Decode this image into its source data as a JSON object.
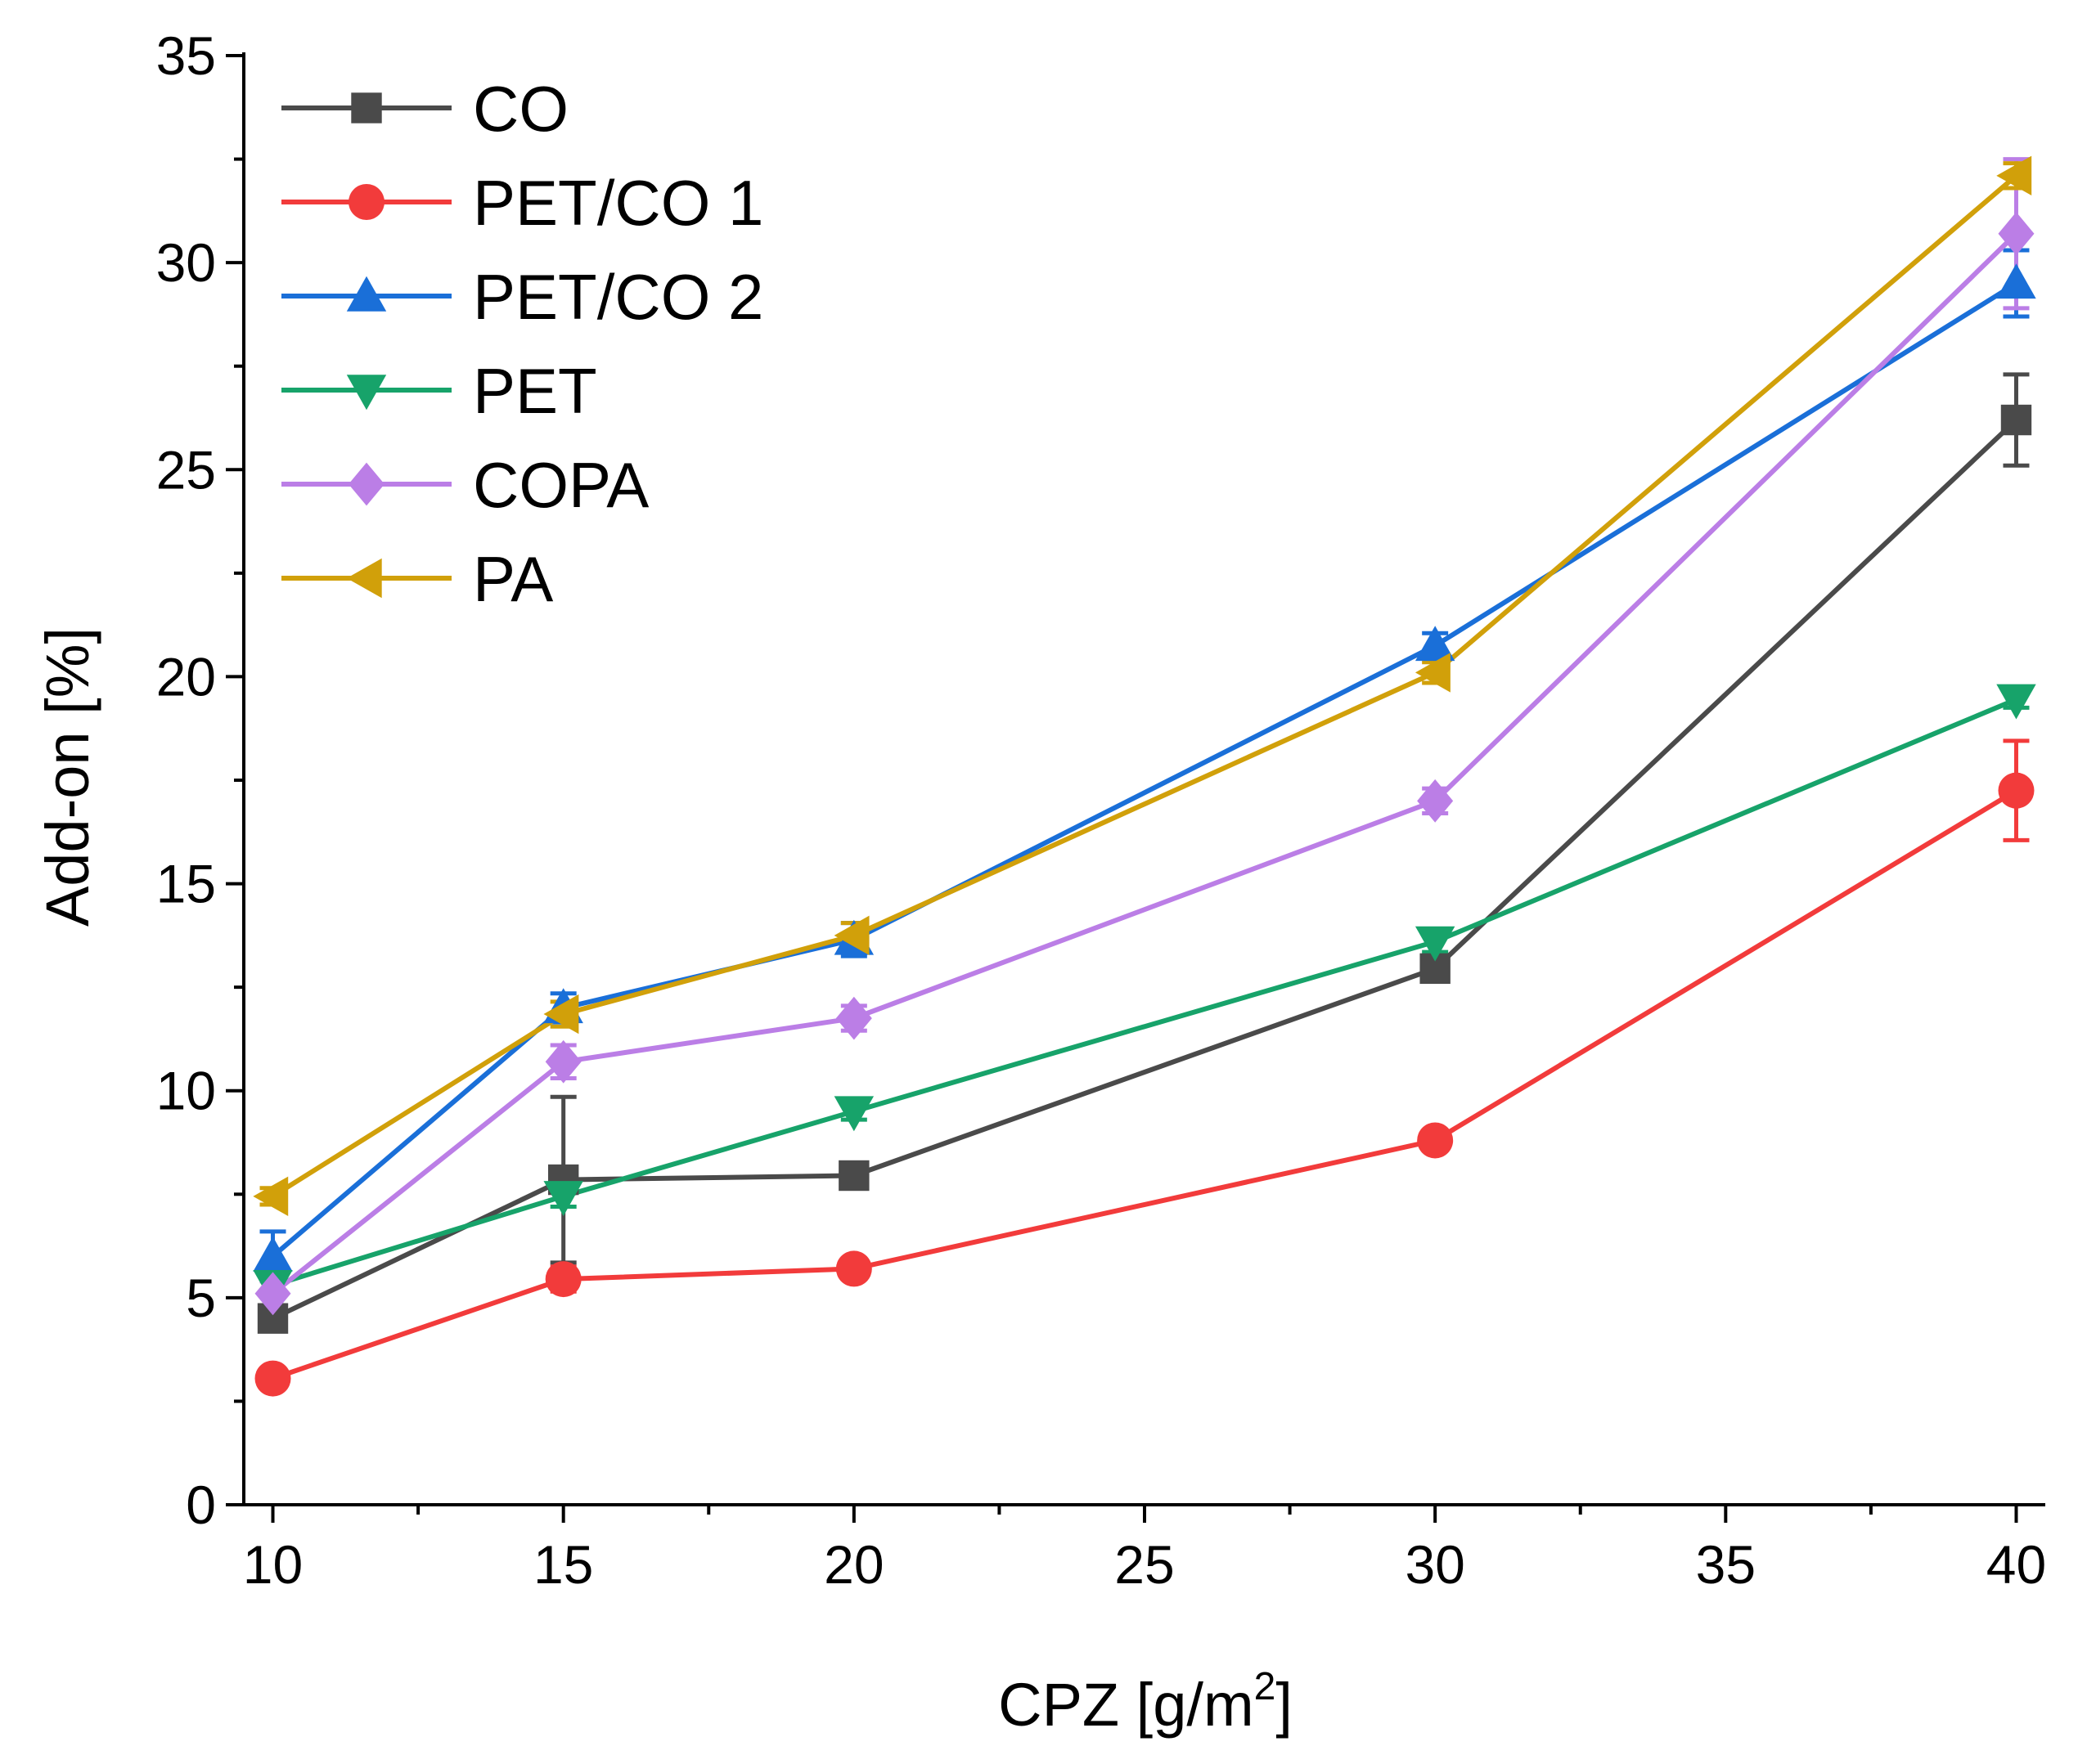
{
  "chart_data": {
    "type": "line",
    "title": "",
    "xlabel_main": "CPZ [g/m",
    "xlabel_sup": "2",
    "xlabel_end": "]",
    "ylabel": "Add-on [%]",
    "xlim": [
      9.5,
      40.5
    ],
    "ylim": [
      0,
      35
    ],
    "x_ticks": [
      10,
      15,
      20,
      25,
      30,
      35,
      40
    ],
    "x_tick_labels": [
      "10",
      "15",
      "20",
      "25",
      "30",
      "35",
      "40"
    ],
    "y_ticks": [
      0,
      5,
      10,
      15,
      20,
      25,
      30,
      35
    ],
    "y_tick_labels": [
      "0",
      "5",
      "10",
      "15",
      "20",
      "25",
      "30",
      "35"
    ],
    "x": [
      10,
      15,
      20,
      30,
      40
    ],
    "legend_position": "top-left",
    "series": [
      {
        "name": "CO",
        "marker": "square",
        "color": "#4a4a4a",
        "values": [
          4.5,
          7.85,
          7.95,
          12.95,
          26.2
        ],
        "errors": [
          0.3,
          2.0,
          0.3,
          0.3,
          1.1
        ]
      },
      {
        "name": "PET/CO 1",
        "marker": "circle",
        "color": "#f23b3b",
        "values": [
          3.05,
          5.45,
          5.7,
          8.8,
          17.25
        ],
        "errors": [
          0.2,
          0.3,
          0.25,
          0.2,
          1.2
        ]
      },
      {
        "name": "PET/CO 2",
        "marker": "triangle-up",
        "color": "#1a6fd8",
        "values": [
          6.0,
          12.0,
          13.65,
          20.75,
          29.5
        ],
        "errors": [
          0.6,
          0.35,
          0.4,
          0.3,
          0.8
        ]
      },
      {
        "name": "PET",
        "marker": "triangle-down",
        "color": "#17a36a",
        "values": [
          5.3,
          7.45,
          9.5,
          13.6,
          19.45
        ],
        "errors": [
          0.2,
          0.25,
          0.2,
          0.25,
          0.2
        ]
      },
      {
        "name": "COPA",
        "marker": "diamond",
        "color": "#bb7ee6",
        "values": [
          5.1,
          10.7,
          11.75,
          17.0,
          30.7
        ],
        "errors": [
          0.3,
          0.4,
          0.3,
          0.3,
          1.8
        ]
      },
      {
        "name": "PA",
        "marker": "triangle-left",
        "color": "#d1a00a",
        "values": [
          7.45,
          11.85,
          13.75,
          20.1,
          32.1
        ],
        "errors": [
          0.2,
          0.3,
          0.3,
          0.25,
          0.3
        ]
      }
    ]
  }
}
